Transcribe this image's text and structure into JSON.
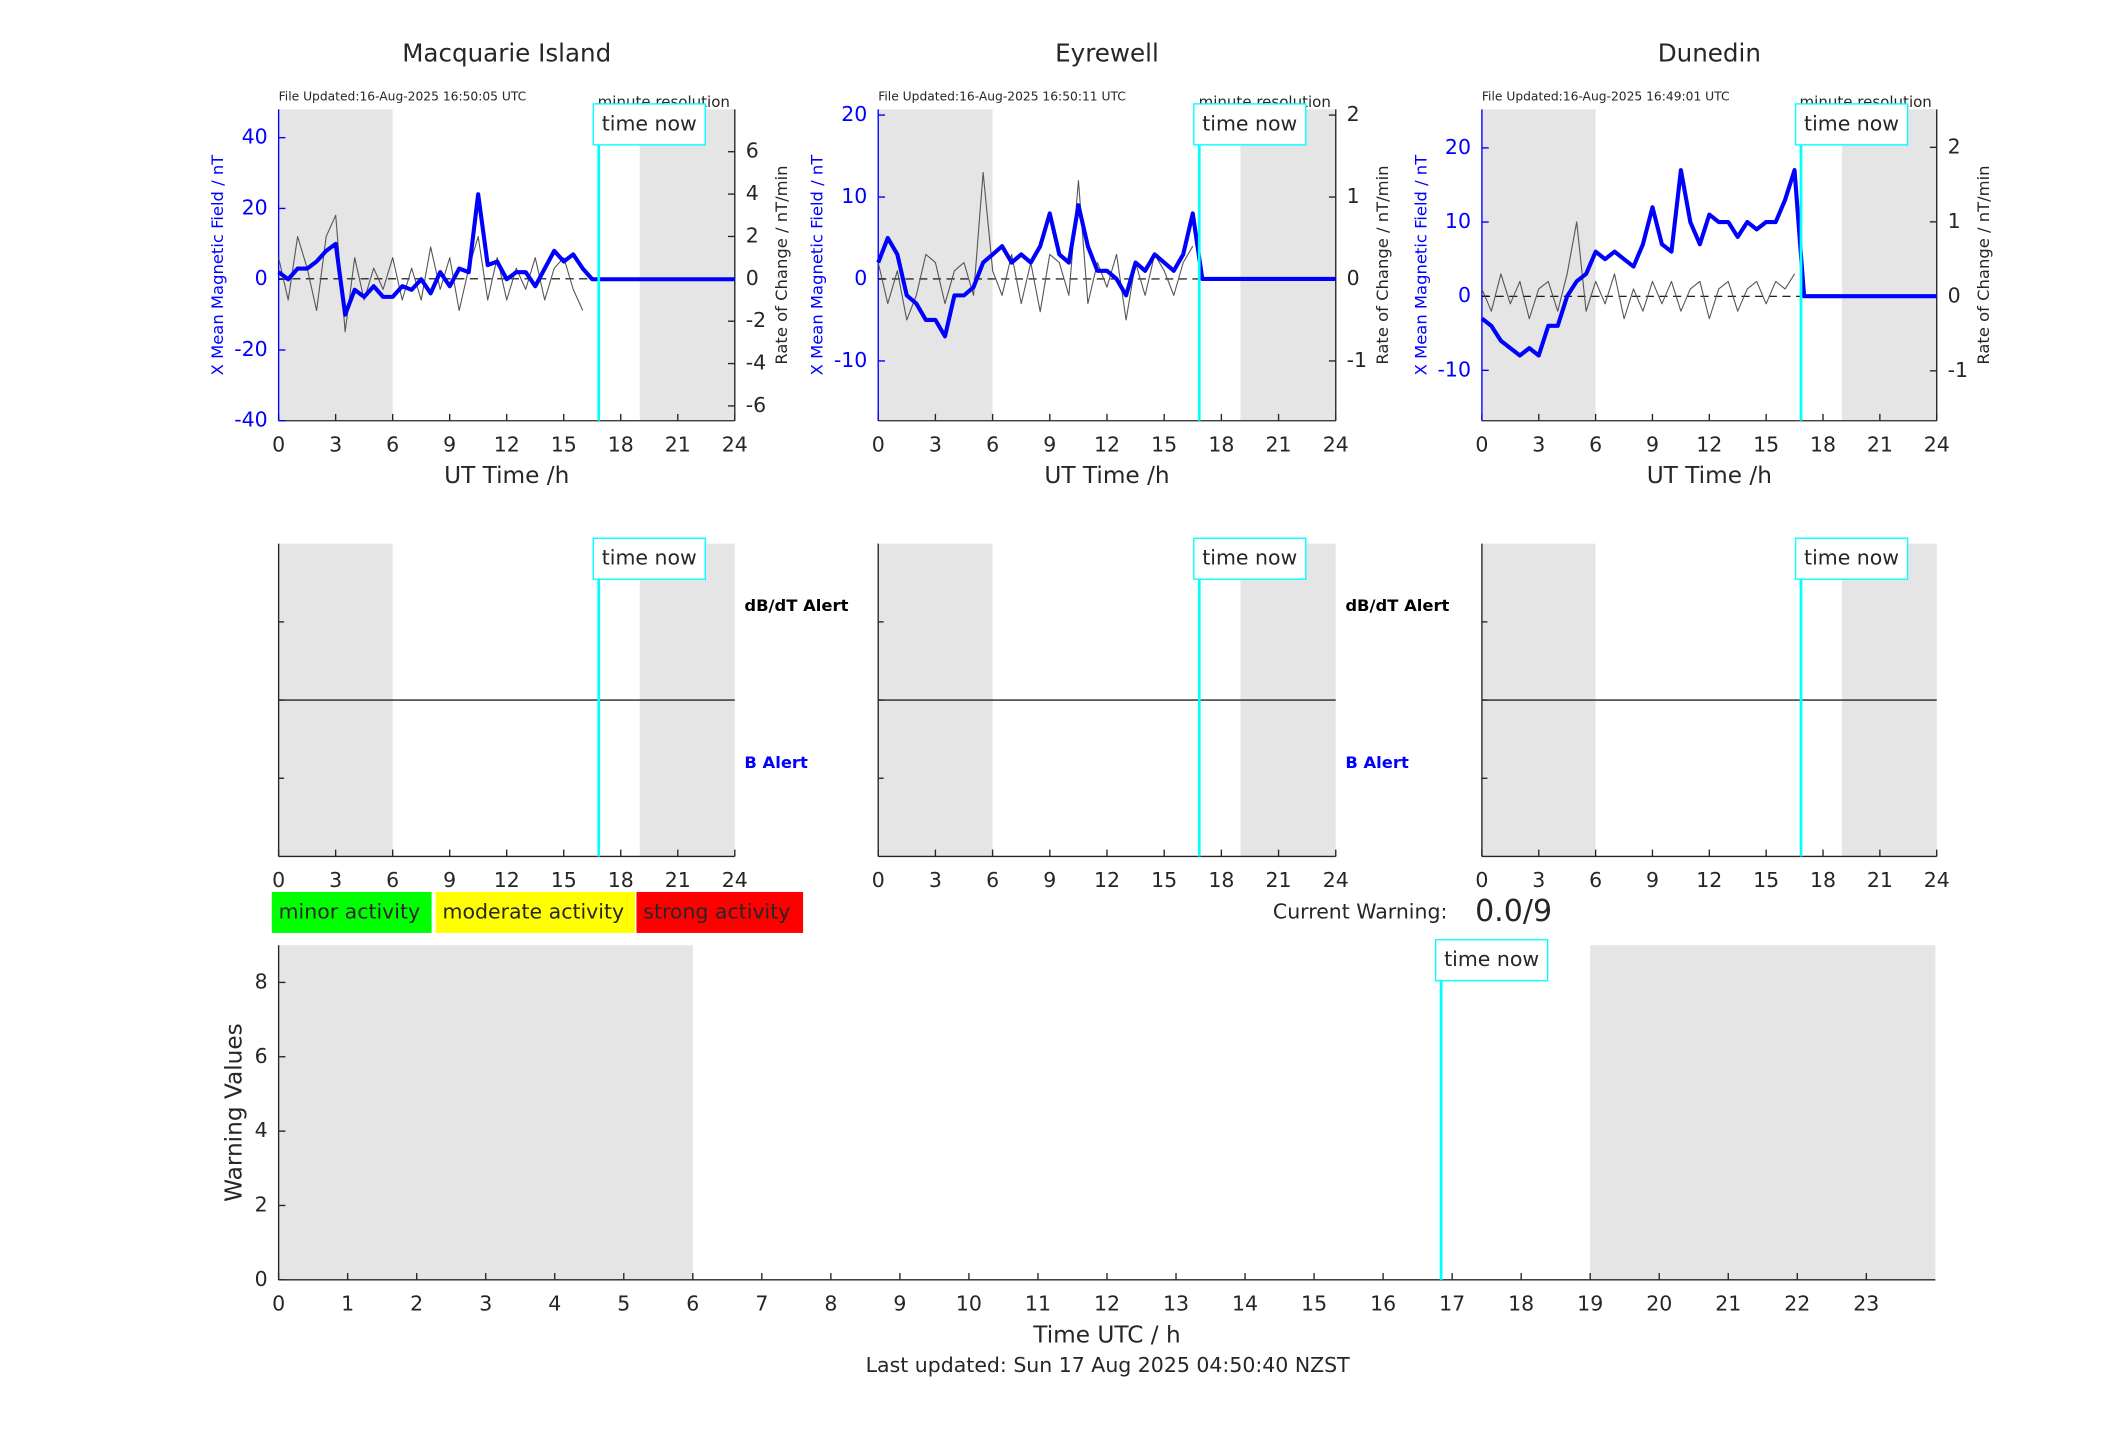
{
  "chart_data": [
    {
      "type": "field",
      "title": "Macquarie Island",
      "file_updated": "File Updated:16-Aug-2025 16:50:05 UTC",
      "resolution": "minute resolution",
      "time_now_label": "time now",
      "time_now": 16.84,
      "xlabel": "UT Time /h",
      "ylabel": "X Mean Magnetic Field / nT",
      "y2label": "Rate of Change / nT/min",
      "axis_color": "#0000ff",
      "xlim": [
        0,
        24
      ],
      "xticks": [
        0,
        3,
        6,
        9,
        12,
        15,
        18,
        21,
        24
      ],
      "ylim": [
        -40,
        48
      ],
      "yticks": [
        -40,
        -20,
        0,
        20,
        40
      ],
      "y2lim": [
        -6.7,
        8
      ],
      "y2ticks": [
        -6,
        -4,
        -2,
        0,
        2,
        4,
        6
      ],
      "shaded": [
        [
          0,
          6
        ],
        [
          19,
          24
        ]
      ],
      "shade_color": "#e5e5e5",
      "x": [
        0,
        0.5,
        1,
        1.5,
        2,
        2.5,
        3,
        3.5,
        4,
        4.5,
        5,
        5.5,
        6,
        6.5,
        7,
        7.5,
        8,
        8.5,
        9,
        9.5,
        10,
        10.5,
        11,
        11.5,
        12,
        12.5,
        13,
        13.5,
        14,
        14.5,
        15,
        15.5,
        16,
        16.5,
        17,
        17.5,
        18,
        18.5,
        19,
        19.5,
        20,
        20.5,
        21,
        21.5,
        22,
        22.5,
        23,
        23.5,
        24
      ],
      "series": [
        {
          "name": "X Mean Magnetic Field",
          "color": "#0000ff",
          "values": [
            2,
            0,
            3,
            3,
            5,
            8,
            10,
            -10,
            -3,
            -5,
            -2,
            -5,
            -5,
            -2,
            -3,
            0,
            -4,
            2,
            -2,
            3,
            2,
            24,
            4,
            5,
            0,
            2,
            2,
            -2,
            3,
            8,
            5,
            7,
            3,
            0,
            0,
            0,
            0,
            0,
            0,
            0,
            0,
            0,
            0,
            0,
            0,
            0,
            0,
            0,
            0
          ]
        },
        {
          "name": "Rate of Change",
          "color": "#555555",
          "axis": "y2",
          "values": [
            1,
            -1,
            2,
            0.5,
            -1.5,
            2,
            3,
            -2.5,
            1,
            -1,
            0.5,
            -0.5,
            1,
            -1,
            0.5,
            -1,
            1.5,
            -0.5,
            1,
            -1.5,
            0.5,
            2,
            -1,
            1,
            -1,
            0.5,
            -0.5,
            1,
            -1,
            0.5,
            1,
            -0.5,
            -1.5,
            null,
            null,
            null,
            null,
            null,
            null,
            null,
            null,
            null,
            null,
            null,
            null,
            null,
            null,
            null,
            null
          ]
        }
      ]
    },
    {
      "type": "field",
      "title": "Eyrewell",
      "file_updated": "File Updated:16-Aug-2025 16:50:11 UTC",
      "resolution": "minute resolution",
      "time_now_label": "time now",
      "time_now": 16.84,
      "xlabel": "UT Time /h",
      "ylabel": "X Mean Magnetic Field / nT",
      "y2label": "Rate of Change / nT/min",
      "axis_color": "#0000ff",
      "xlim": [
        0,
        24
      ],
      "xticks": [
        0,
        3,
        6,
        9,
        12,
        15,
        18,
        21,
        24
      ],
      "ylim": [
        -17.3,
        20.7
      ],
      "yticks": [
        -10,
        0,
        10,
        20
      ],
      "y2lim": [
        -1.73,
        2.07
      ],
      "y2ticks": [
        -1,
        0,
        1,
        2
      ],
      "shaded": [
        [
          0,
          6
        ],
        [
          19,
          24
        ]
      ],
      "shade_color": "#e5e5e5",
      "x": [
        0,
        0.5,
        1,
        1.5,
        2,
        2.5,
        3,
        3.5,
        4,
        4.5,
        5,
        5.5,
        6,
        6.5,
        7,
        7.5,
        8,
        8.5,
        9,
        9.5,
        10,
        10.5,
        11,
        11.5,
        12,
        12.5,
        13,
        13.5,
        14,
        14.5,
        15,
        15.5,
        16,
        16.5,
        17,
        17.5,
        18,
        18.5,
        19,
        19.5,
        20,
        20.5,
        21,
        21.5,
        22,
        22.5,
        23,
        23.5,
        24
      ],
      "series": [
        {
          "name": "X Mean Magnetic Field",
          "color": "#0000ff",
          "values": [
            2,
            5,
            3,
            -2,
            -3,
            -5,
            -5,
            -7,
            -2,
            -2,
            -1,
            2,
            3,
            4,
            2,
            3,
            2,
            4,
            8,
            3,
            2,
            9,
            4,
            1,
            1,
            0,
            -2,
            2,
            1,
            3,
            2,
            1,
            3,
            8,
            0,
            0,
            0,
            0,
            0,
            0,
            0,
            0,
            0,
            0,
            0,
            0,
            0,
            0,
            0
          ]
        },
        {
          "name": "Rate of Change",
          "color": "#555555",
          "axis": "y2",
          "values": [
            0.2,
            -0.3,
            0.1,
            -0.5,
            -0.2,
            0.3,
            0.2,
            -0.3,
            0.1,
            0.2,
            -0.2,
            1.3,
            0.1,
            -0.2,
            0.3,
            -0.3,
            0.2,
            -0.4,
            0.3,
            0.2,
            -0.2,
            1.2,
            -0.3,
            0.2,
            -0.1,
            0.3,
            -0.5,
            0.2,
            -0.2,
            0.3,
            0.1,
            -0.2,
            0.2,
            0.4,
            null,
            null,
            null,
            null,
            null,
            null,
            null,
            null,
            null,
            null,
            null,
            null,
            null,
            null,
            null
          ]
        }
      ]
    },
    {
      "type": "field",
      "title": "Dunedin",
      "file_updated": "File Updated:16-Aug-2025 16:49:01 UTC",
      "resolution": "minute resolution",
      "time_now_label": "time now",
      "time_now": 16.84,
      "xlabel": "UT Time /h",
      "ylabel": "X Mean Magnetic Field / nT",
      "y2label": "Rate of Change / nT/min",
      "axis_color": "#0000ff",
      "xlim": [
        0,
        24
      ],
      "xticks": [
        0,
        3,
        6,
        9,
        12,
        15,
        18,
        21,
        24
      ],
      "ylim": [
        -16.8,
        25.2
      ],
      "yticks": [
        -10,
        0,
        10,
        20
      ],
      "y2lim": [
        -1.67,
        2.51
      ],
      "y2ticks": [
        -1,
        0,
        1,
        2
      ],
      "shaded": [
        [
          0,
          6
        ],
        [
          19,
          24
        ]
      ],
      "shade_color": "#e5e5e5",
      "x": [
        0,
        0.5,
        1,
        1.5,
        2,
        2.5,
        3,
        3.5,
        4,
        4.5,
        5,
        5.5,
        6,
        6.5,
        7,
        7.5,
        8,
        8.5,
        9,
        9.5,
        10,
        10.5,
        11,
        11.5,
        12,
        12.5,
        13,
        13.5,
        14,
        14.5,
        15,
        15.5,
        16,
        16.5,
        17,
        17.5,
        18,
        18.5,
        19,
        19.5,
        20,
        20.5,
        21,
        21.5,
        22,
        22.5,
        23,
        23.5,
        24
      ],
      "series": [
        {
          "name": "X Mean Magnetic Field",
          "color": "#0000ff",
          "values": [
            -3,
            -4,
            -6,
            -7,
            -8,
            -7,
            -8,
            -4,
            -4,
            0,
            2,
            3,
            6,
            5,
            6,
            5,
            4,
            7,
            12,
            7,
            6,
            17,
            10,
            7,
            11,
            10,
            10,
            8,
            10,
            9,
            10,
            10,
            13,
            17,
            0,
            0,
            0,
            0,
            0,
            0,
            0,
            0,
            0,
            0,
            0,
            0,
            0,
            0,
            0
          ]
        },
        {
          "name": "Rate of Change",
          "color": "#555555",
          "axis": "y2",
          "values": [
            0.1,
            -0.2,
            0.3,
            -0.1,
            0.2,
            -0.3,
            0.1,
            0.2,
            -0.2,
            0.3,
            1.0,
            -0.2,
            0.2,
            -0.1,
            0.3,
            -0.3,
            0.1,
            -0.2,
            0.2,
            -0.1,
            0.2,
            -0.2,
            0.1,
            0.2,
            -0.3,
            0.1,
            0.2,
            -0.2,
            0.1,
            0.2,
            -0.1,
            0.2,
            0.1,
            0.3,
            null,
            null,
            null,
            null,
            null,
            null,
            null,
            null,
            null,
            null,
            null,
            null,
            null,
            null,
            null
          ]
        }
      ]
    },
    {
      "type": "alert",
      "time_now_label": "time now",
      "time_now": 16.84,
      "xlim": [
        0,
        24
      ],
      "xticks": [
        0,
        3,
        6,
        9,
        12,
        15,
        18,
        21,
        24
      ],
      "shaded": [
        [
          0,
          6
        ],
        [
          19,
          24
        ]
      ],
      "shade_color": "#e5e5e5",
      "alert_labels": [
        "dB/dT Alert",
        "B Alert"
      ]
    },
    {
      "type": "alert",
      "time_now_label": "time now",
      "time_now": 16.84,
      "xlim": [
        0,
        24
      ],
      "xticks": [
        0,
        3,
        6,
        9,
        12,
        15,
        18,
        21,
        24
      ],
      "shaded": [
        [
          0,
          6
        ],
        [
          19,
          24
        ]
      ],
      "shade_color": "#e5e5e5",
      "alert_labels": [
        "dB/dT Alert",
        "B Alert"
      ]
    },
    {
      "type": "alert",
      "time_now_label": "time now",
      "time_now": 16.84,
      "xlim": [
        0,
        24
      ],
      "xticks": [
        0,
        3,
        6,
        9,
        12,
        15,
        18,
        21,
        24
      ],
      "shaded": [
        [
          0,
          6
        ],
        [
          19,
          24
        ]
      ],
      "shade_color": "#e5e5e5"
    },
    {
      "type": "warning",
      "time_now_label": "time now",
      "time_now": 16.84,
      "xlabel": "Time UTC / h",
      "ylabel": "Warning Values",
      "xlim": [
        0,
        24
      ],
      "xticks": [
        0,
        1,
        2,
        3,
        4,
        5,
        6,
        7,
        8,
        9,
        10,
        11,
        12,
        13,
        14,
        15,
        16,
        17,
        18,
        19,
        20,
        21,
        22,
        23
      ],
      "ylim": [
        0,
        9
      ],
      "yticks": [
        0,
        2,
        4,
        6,
        8
      ],
      "shaded": [
        [
          0,
          6
        ],
        [
          19,
          24
        ]
      ],
      "shade_color": "#e5e5e5"
    }
  ],
  "legend": [
    {
      "label": "minor activity",
      "color": "#00ff00"
    },
    {
      "label": "moderate activity",
      "color": "#ffff00"
    },
    {
      "label": "strong activity",
      "color": "#ff0000"
    }
  ],
  "current_warning": {
    "label": "Current Warning:",
    "value": "0.0/9"
  },
  "last_updated": "Last updated: Sun 17 Aug 2025 04:50:40 NZST"
}
